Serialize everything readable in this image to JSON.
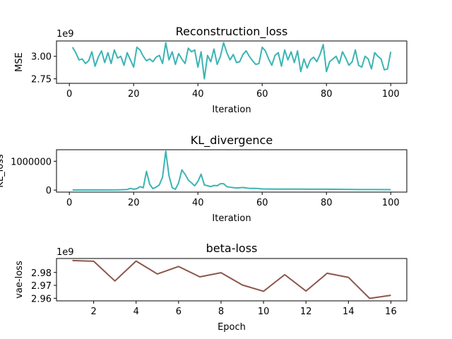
{
  "chart_data": [
    {
      "type": "line",
      "title": "Reconstruction_loss",
      "xlabel": "Iteration",
      "ylabel": "MSE",
      "offset_label": "1e9",
      "xlim": [
        -4,
        105
      ],
      "ylim": [
        2.7,
        3.17
      ],
      "xticks": [
        0,
        20,
        40,
        60,
        80,
        100
      ],
      "xtick_labels": [
        "0",
        "20",
        "40",
        "60",
        "80",
        "100"
      ],
      "yticks": [
        2.75,
        3.0
      ],
      "ytick_labels": [
        "2.75",
        "3.00"
      ],
      "color": "#3cb4b4",
      "x": [
        1,
        2,
        3,
        4,
        5,
        6,
        7,
        8,
        9,
        10,
        11,
        12,
        13,
        14,
        15,
        16,
        17,
        18,
        19,
        20,
        21,
        22,
        23,
        24,
        25,
        26,
        27,
        28,
        29,
        30,
        31,
        32,
        33,
        34,
        35,
        36,
        37,
        38,
        39,
        40,
        41,
        42,
        43,
        44,
        45,
        46,
        47,
        48,
        49,
        50,
        51,
        52,
        53,
        54,
        55,
        56,
        57,
        58,
        59,
        60,
        61,
        62,
        63,
        64,
        65,
        66,
        67,
        68,
        69,
        70,
        71,
        72,
        73,
        74,
        75,
        76,
        77,
        78,
        79,
        80,
        81,
        82,
        83,
        84,
        85,
        86,
        87,
        88,
        89,
        90,
        91,
        92,
        93,
        94,
        95,
        96,
        97,
        98,
        99,
        100
      ],
      "y": [
        3.1,
        3.04,
        2.96,
        2.97,
        2.92,
        2.95,
        3.05,
        2.89,
        2.99,
        3.06,
        2.93,
        3.04,
        2.92,
        3.07,
        2.98,
        3.0,
        2.9,
        3.04,
        2.96,
        2.88,
        3.1,
        3.07,
        3.0,
        2.95,
        2.97,
        2.94,
        2.99,
        3.01,
        2.92,
        3.15,
        2.96,
        3.05,
        2.91,
        3.03,
        2.97,
        2.92,
        3.09,
        3.05,
        3.07,
        2.88,
        3.05,
        2.75,
        3.01,
        2.94,
        3.08,
        2.91,
        3.0,
        3.15,
        3.04,
        2.96,
        3.02,
        2.93,
        2.94,
        3.02,
        3.06,
        3.0,
        2.95,
        2.91,
        2.92,
        3.1,
        3.06,
        2.97,
        2.9,
        3.01,
        3.04,
        2.89,
        3.07,
        2.96,
        3.05,
        2.93,
        3.06,
        2.83,
        2.97,
        2.87,
        2.96,
        2.99,
        2.94,
        3.02,
        3.13,
        2.83,
        2.94,
        2.97,
        3.0,
        2.92,
        3.05,
        2.98,
        2.9,
        2.94,
        3.07,
        2.9,
        2.88,
        3.0,
        2.97,
        2.86,
        3.04,
        3.0,
        2.97,
        2.85,
        2.86,
        3.05
      ]
    },
    {
      "type": "line",
      "title": "KL_divergence",
      "xlabel": "Iteration",
      "ylabel": "KL_loss",
      "xlim": [
        -4,
        105
      ],
      "ylim": [
        -70000,
        1400000
      ],
      "xticks": [
        0,
        20,
        40,
        60,
        80,
        100
      ],
      "xtick_labels": [
        "0",
        "20",
        "40",
        "60",
        "80",
        "100"
      ],
      "yticks": [
        0,
        1000000
      ],
      "ytick_labels": [
        "0",
        "1000000"
      ],
      "color": "#3cb4b4",
      "x": [
        1,
        5,
        10,
        15,
        18,
        19,
        20,
        21,
        22,
        23,
        24,
        25,
        26,
        27,
        28,
        29,
        30,
        31,
        32,
        33,
        34,
        35,
        36,
        37,
        38,
        39,
        40,
        41,
        42,
        43,
        44,
        45,
        46,
        47,
        48,
        49,
        50,
        52,
        54,
        56,
        58,
        60,
        65,
        70,
        75,
        80,
        85,
        90,
        95,
        100
      ],
      "y": [
        5000,
        5000,
        5000,
        8000,
        20000,
        60000,
        30000,
        50000,
        120000,
        80000,
        650000,
        200000,
        50000,
        100000,
        180000,
        450000,
        1350000,
        500000,
        80000,
        30000,
        250000,
        700000,
        550000,
        350000,
        250000,
        150000,
        300000,
        550000,
        180000,
        150000,
        120000,
        160000,
        150000,
        220000,
        220000,
        120000,
        100000,
        70000,
        90000,
        60000,
        60000,
        40000,
        35000,
        35000,
        30000,
        30000,
        25000,
        20000,
        20000,
        15000
      ]
    },
    {
      "type": "line",
      "title": "beta-loss",
      "xlabel": "Epoch",
      "ylabel": "vae-loss",
      "offset_label": "1e9",
      "xlim": [
        0.25,
        16.75
      ],
      "ylim": [
        2.958,
        2.9908
      ],
      "xticks": [
        2,
        4,
        6,
        8,
        10,
        12,
        14,
        16
      ],
      "xtick_labels": [
        "2",
        "4",
        "6",
        "8",
        "10",
        "12",
        "14",
        "16"
      ],
      "yticks": [
        2.96,
        2.97,
        2.98
      ],
      "ytick_labels": [
        "2.96",
        "2.97",
        "2.98"
      ],
      "color": "#8c564b",
      "x": [
        1,
        2,
        3,
        4,
        5,
        6,
        7,
        8,
        9,
        10,
        11,
        12,
        13,
        14,
        15,
        16
      ],
      "y": [
        2.9892,
        2.9887,
        2.9734,
        2.9888,
        2.9788,
        2.9846,
        2.9766,
        2.9798,
        2.9703,
        2.9654,
        2.9783,
        2.9656,
        2.9794,
        2.9762,
        2.9599,
        2.9623
      ]
    }
  ]
}
